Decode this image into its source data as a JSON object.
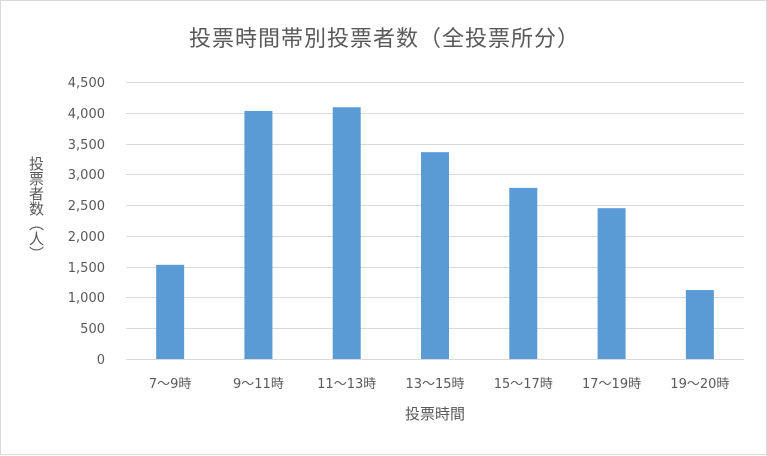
{
  "chart_data": {
    "type": "bar",
    "title": "投票時間帯別投票者数（全投票所分）",
    "xlabel": "投票時間",
    "ylabel": "投票者数（人）",
    "categories": [
      "7～9時",
      "9～11時",
      "11～13時",
      "13～15時",
      "15～17時",
      "17～19時",
      "19～20時"
    ],
    "values": [
      1530,
      4030,
      4090,
      3360,
      2780,
      2450,
      1120
    ],
    "ylim": [
      0,
      4500
    ],
    "yticks": [
      0,
      500,
      1000,
      1500,
      2000,
      2500,
      3000,
      3500,
      4000,
      4500
    ],
    "ytick_labels": [
      "0",
      "500",
      "1,000",
      "1,500",
      "2,000",
      "2,500",
      "3,000",
      "3,500",
      "4,000",
      "4,500"
    ],
    "grid": true,
    "bar_color": "#5b9bd5",
    "grid_color": "#d9d9d9"
  }
}
